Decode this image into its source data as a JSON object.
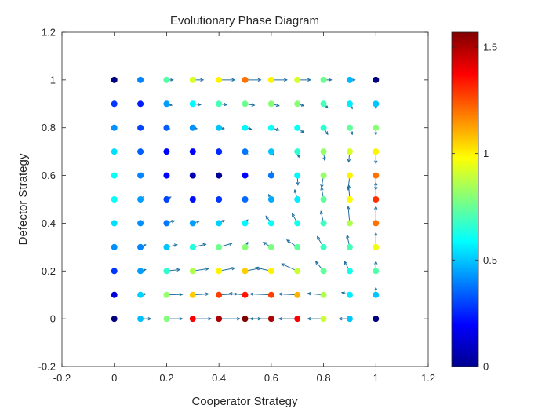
{
  "chart_data": {
    "type": "scatter",
    "title": "Evolutionary Phase Diagram",
    "xlabel": "Cooperator Strategy",
    "ylabel": "Defector Strategy",
    "xlim": [
      -0.2,
      1.2
    ],
    "ylim": [
      -0.2,
      1.2
    ],
    "xticks": [
      "-0.2",
      "0",
      "0.2",
      "0.4",
      "0.6",
      "0.8",
      "1",
      "1.2"
    ],
    "yticks": [
      "-0.2",
      "0",
      "0.2",
      "0.4",
      "0.6",
      "0.8",
      "1",
      "1.2"
    ],
    "grid": false,
    "colormap": "jet",
    "colorbar": {
      "clim": [
        0,
        1.57
      ],
      "ticks": [
        "0",
        "0.5",
        "1",
        "1.5"
      ],
      "tick_values": [
        0,
        0.5,
        1,
        1.5
      ]
    },
    "x": [
      0,
      0.1,
      0.2,
      0.3,
      0.4,
      0.5,
      0.6,
      0.7,
      0.8,
      0.9,
      1
    ],
    "y": [
      0,
      0.1,
      0.2,
      0.3,
      0.4,
      0.5,
      0.6,
      0.7,
      0.8,
      0.9,
      1
    ],
    "series": [
      {
        "values": [
          [
            0.0,
            0.49,
            0.79,
            1.38,
            1.5,
            1.57,
            1.5,
            1.38,
            0.9,
            0.5,
            0.0
          ],
          [
            0.14,
            0.52,
            0.82,
            1.06,
            1.28,
            1.34,
            1.28,
            1.1,
            0.86,
            0.56,
            0.5
          ],
          [
            0.28,
            0.44,
            0.66,
            0.86,
            1.0,
            1.06,
            1.0,
            0.9,
            0.74,
            0.62,
            0.72
          ],
          [
            0.42,
            0.4,
            0.5,
            0.64,
            0.76,
            0.8,
            0.78,
            0.74,
            0.68,
            0.7,
            0.96
          ],
          [
            0.54,
            0.42,
            0.38,
            0.44,
            0.52,
            0.58,
            0.6,
            0.62,
            0.68,
            0.86,
            1.2
          ],
          [
            0.6,
            0.44,
            0.3,
            0.22,
            0.28,
            0.36,
            0.46,
            0.56,
            0.74,
            0.98,
            1.3
          ],
          [
            0.6,
            0.4,
            0.2,
            0.08,
            0.04,
            0.2,
            0.38,
            0.58,
            0.82,
            1.0,
            1.2
          ],
          [
            0.54,
            0.34,
            0.2,
            0.2,
            0.26,
            0.38,
            0.5,
            0.66,
            0.82,
            0.92,
            1.0
          ],
          [
            0.42,
            0.3,
            0.34,
            0.42,
            0.5,
            0.58,
            0.6,
            0.6,
            0.66,
            0.74,
            0.8
          ],
          [
            0.28,
            0.24,
            0.44,
            0.58,
            0.7,
            0.76,
            0.8,
            0.8,
            0.7,
            0.56,
            0.5
          ],
          [
            0.0,
            0.4,
            0.72,
            0.92,
            1.0,
            1.2,
            1.0,
            0.92,
            0.76,
            0.48,
            0.0
          ]
        ],
        "vectors": [
          [
            [
              0,
              0
            ],
            [
              0.2,
              0
            ],
            [
              0.3,
              0
            ],
            [
              0.35,
              0
            ],
            [
              0.4,
              0
            ],
            [
              0.3,
              0
            ],
            [
              -0.4,
              0
            ],
            [
              -0.35,
              0
            ],
            [
              -0.3,
              0
            ],
            [
              -0.2,
              0
            ],
            [
              0,
              0
            ]
          ],
          [
            [
              0,
              0
            ],
            [
              0.1,
              0.02
            ],
            [
              0.3,
              0.01
            ],
            [
              0.3,
              0.02
            ],
            [
              0.35,
              0.02
            ],
            [
              -0.3,
              0.03
            ],
            [
              -0.4,
              0.02
            ],
            [
              -0.35,
              0.02
            ],
            [
              -0.3,
              0.03
            ],
            [
              -0.15,
              0.05
            ],
            [
              0,
              0.15
            ]
          ],
          [
            [
              0,
              0
            ],
            [
              0.1,
              0.03
            ],
            [
              0.25,
              0.03
            ],
            [
              0.3,
              0.05
            ],
            [
              0.3,
              0.06
            ],
            [
              0.3,
              0.06
            ],
            [
              -0.3,
              0.07
            ],
            [
              -0.3,
              0.15
            ],
            [
              -0.15,
              0.2
            ],
            [
              -0.1,
              0.2
            ],
            [
              0,
              0.2
            ]
          ],
          [
            [
              0,
              0
            ],
            [
              0.1,
              0.05
            ],
            [
              0.2,
              0.05
            ],
            [
              0.25,
              0.06
            ],
            [
              0.25,
              0.08
            ],
            [
              0.05,
              0.1
            ],
            [
              -0.15,
              0.1
            ],
            [
              -0.2,
              0.15
            ],
            [
              -0.12,
              0.22
            ],
            [
              -0.05,
              0.25
            ],
            [
              0,
              0.3
            ]
          ],
          [
            [
              0,
              0
            ],
            [
              0.05,
              0.05
            ],
            [
              0.15,
              0.05
            ],
            [
              0.12,
              0.04
            ],
            [
              0.1,
              0.06
            ],
            [
              0.05,
              0.07
            ],
            [
              -0.1,
              0.15
            ],
            [
              -0.1,
              0.2
            ],
            [
              -0.05,
              0.25
            ],
            [
              -0.03,
              0.35
            ],
            [
              0,
              0.35
            ]
          ],
          [
            [
              0,
              0
            ],
            [
              0.05,
              0.05
            ],
            [
              0.08,
              0.05
            ],
            [
              0.05,
              0.03
            ],
            [
              0.04,
              0.04
            ],
            [
              0.02,
              0.05
            ],
            [
              -0.05,
              0.1
            ],
            [
              -0.05,
              0.2
            ],
            [
              -0.04,
              0.25
            ],
            [
              -0.02,
              0.3
            ],
            [
              0,
              0.35
            ]
          ],
          [
            [
              0,
              0
            ],
            [
              0.05,
              0.03
            ],
            [
              0.04,
              0.03
            ],
            [
              0.03,
              0.02
            ],
            [
              0.02,
              0.01
            ],
            [
              0.01,
              0.03
            ],
            [
              0.01,
              0.08
            ],
            [
              0.01,
              -0.2
            ],
            [
              -0.04,
              -0.25
            ],
            [
              -0.03,
              -0.3
            ],
            [
              0,
              -0.3
            ]
          ],
          [
            [
              0,
              0
            ],
            [
              0.05,
              -0.02
            ],
            [
              0.04,
              -0.03
            ],
            [
              0.03,
              -0.02
            ],
            [
              0.05,
              -0.03
            ],
            [
              0.05,
              -0.05
            ],
            [
              0.05,
              -0.08
            ],
            [
              0.03,
              -0.12
            ],
            [
              0.02,
              -0.18
            ],
            [
              -0.02,
              -0.22
            ],
            [
              0,
              -0.25
            ]
          ],
          [
            [
              0,
              0
            ],
            [
              0.05,
              -0.02
            ],
            [
              0.06,
              -0.02
            ],
            [
              0.08,
              -0.02
            ],
            [
              0.1,
              -0.02
            ],
            [
              0.12,
              -0.03
            ],
            [
              0.15,
              -0.05
            ],
            [
              0.12,
              -0.1
            ],
            [
              0.08,
              -0.14
            ],
            [
              0.05,
              -0.14
            ],
            [
              0,
              -0.15
            ]
          ],
          [
            [
              0,
              0
            ],
            [
              0.05,
              -0.02
            ],
            [
              0.1,
              -0.03
            ],
            [
              0.15,
              -0.02
            ],
            [
              0.15,
              -0.02
            ],
            [
              0.18,
              -0.03
            ],
            [
              0.15,
              -0.04
            ],
            [
              0.12,
              -0.04
            ],
            [
              0.08,
              -0.08
            ],
            [
              0.05,
              -0.1
            ],
            [
              0,
              -0.1
            ]
          ],
          [
            [
              0,
              0
            ],
            [
              0.05,
              0
            ],
            [
              0.12,
              0
            ],
            [
              0.2,
              0
            ],
            [
              0.3,
              0
            ],
            [
              0.3,
              0
            ],
            [
              0.3,
              0
            ],
            [
              0.25,
              0
            ],
            [
              0.15,
              0
            ],
            [
              0.1,
              0
            ],
            [
              0,
              0
            ]
          ]
        ]
      }
    ]
  }
}
